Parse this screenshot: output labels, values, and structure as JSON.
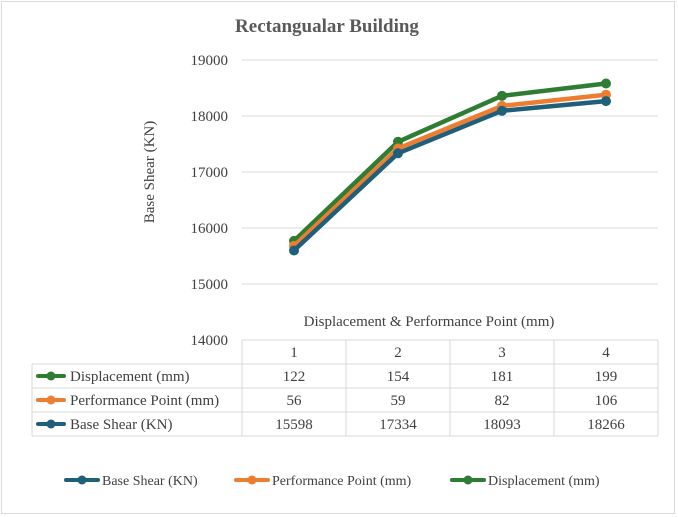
{
  "chart_data": {
    "type": "line",
    "title": "Rectangualar Building",
    "ylabel": "Base Shear (KN)",
    "xlabel": "Displacement & Performance Point (mm)",
    "ylim": [
      14000,
      19000
    ],
    "yticks": [
      14000,
      15000,
      16000,
      17000,
      18000,
      19000
    ],
    "categories": [
      "1",
      "2",
      "3",
      "4"
    ],
    "grid": true,
    "legend_position": "bottom",
    "series": [
      {
        "name": "Displacement (mm)",
        "color": "#2e7d32",
        "values": [
          122,
          154,
          181,
          199
        ],
        "plot_values": [
          15770,
          17540,
          18360,
          18580
        ]
      },
      {
        "name": "Performance Point (mm)",
        "color": "#ed7d31",
        "values": [
          56,
          59,
          82,
          106
        ],
        "plot_values": [
          15680,
          17420,
          18180,
          18380
        ]
      },
      {
        "name": "Base Shear (KN)",
        "color": "#1f5f7a",
        "values": [
          15598,
          17334,
          18093,
          18266
        ],
        "plot_values": [
          15598,
          17334,
          18093,
          18266
        ]
      }
    ],
    "legend_order": [
      "Base Shear (KN)",
      "Performance Point (mm)",
      "Displacement (mm)"
    ]
  }
}
